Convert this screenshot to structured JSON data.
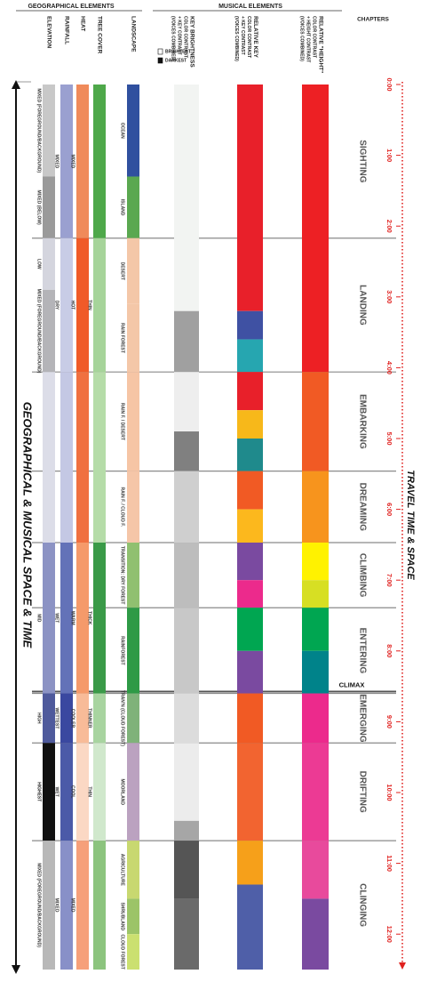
{
  "chart_data": {
    "type": "timeline",
    "title": "GEOGRAPHICAL & MUSICAL SPACE & TIME",
    "time_title": "TRAVEL TIME & SPACE",
    "group_titles": [
      "GEOGRAPHICAL ELEMENTS",
      "MUSICAL ELEMENTS"
    ],
    "chapters_title": "CHAPTERS",
    "ylim": [
      0,
      12.5
    ],
    "yticks": [
      {
        "value": 0,
        "label": "0:00"
      },
      {
        "value": 1,
        "label": "1:00"
      },
      {
        "value": 2,
        "label": "2:00"
      },
      {
        "value": 3,
        "label": "3:00"
      },
      {
        "value": 4,
        "label": "4:00"
      },
      {
        "value": 5,
        "label": "5:00"
      },
      {
        "value": 6,
        "label": "6:00"
      },
      {
        "value": 7,
        "label": "7:00"
      },
      {
        "value": 8,
        "label": "8:00"
      },
      {
        "value": 9,
        "label": "9:00"
      },
      {
        "value": 10,
        "label": "10:00"
      },
      {
        "value": 11,
        "label": "11:00"
      },
      {
        "value": 12,
        "label": "12:00"
      }
    ],
    "chapters": [
      {
        "name": "SIGHTING",
        "start": 0,
        "end": 2.17
      },
      {
        "name": "LANDING",
        "start": 2.17,
        "end": 4.06
      },
      {
        "name": "EMBARKING",
        "start": 4.06,
        "end": 5.46
      },
      {
        "name": "DREAMING",
        "start": 5.46,
        "end": 6.47
      },
      {
        "name": "CLIMBING",
        "start": 6.47,
        "end": 7.39
      },
      {
        "name": "ENTERING",
        "start": 7.39,
        "end": 8.6
      },
      {
        "name": "EMERGING",
        "start": 8.6,
        "end": 9.3
      },
      {
        "name": "DRIFTING",
        "start": 9.3,
        "end": 10.68
      },
      {
        "name": "CLINGING",
        "start": 10.68,
        "end": 12.5
      }
    ],
    "climax": {
      "label": "CLIMAX",
      "time": 8.6
    },
    "brightness_legend": [
      "BRIGHTEST",
      "DARKEST"
    ],
    "columns": [
      {
        "header": [
          "ELEVATION"
        ],
        "group": 0,
        "segments": [
          {
            "start": 0,
            "end": 1.3,
            "color": "#c8c8c8",
            "label": "MIXED (FOREGROUND/BACKGROUND)"
          },
          {
            "start": 1.3,
            "end": 2.17,
            "color": "#9a9a9a",
            "label": "MIXED (BELOW)"
          },
          {
            "start": 2.17,
            "end": 2.9,
            "color": "#d4d5de",
            "label": "LOW"
          },
          {
            "start": 2.9,
            "end": 4.06,
            "color": "#b4b4b8",
            "label": "MIXED (FOREGROUND/BACKGROUND)"
          },
          {
            "start": 4.06,
            "end": 6.47,
            "color": "#dcdde8"
          },
          {
            "start": 6.47,
            "end": 8.6,
            "color": "#8c93c4",
            "label": "MID"
          },
          {
            "start": 8.6,
            "end": 9.3,
            "color": "#4f5a9c",
            "label": "HIGH"
          },
          {
            "start": 9.3,
            "end": 10.68,
            "color": "#111111",
            "label": "HIGHEST"
          },
          {
            "start": 10.68,
            "end": 12.5,
            "color": "#b8b8b8",
            "label": "MIXED (FOREGROUND/BACKGROUND)"
          }
        ]
      },
      {
        "header": [
          "RAINFALL"
        ],
        "group": 0,
        "segments": [
          {
            "start": 0,
            "end": 2.17,
            "color": "#9aa0d0",
            "label": "MIXED"
          },
          {
            "start": 2.17,
            "end": 4.06,
            "color": "#c8cce6",
            "label": "DRY"
          },
          {
            "start": 4.06,
            "end": 6.47,
            "color": "#c4c8e4"
          },
          {
            "start": 6.47,
            "end": 8.6,
            "color": "#6372b8",
            "label": "WET"
          },
          {
            "start": 8.6,
            "end": 9.3,
            "color": "#3a48a0",
            "label": "WETTEST"
          },
          {
            "start": 9.3,
            "end": 10.68,
            "color": "#4b5aa8",
            "label": "WET"
          },
          {
            "start": 10.68,
            "end": 12.5,
            "color": "#8890c8",
            "label": "MIXED"
          }
        ]
      },
      {
        "header": [
          "HEAT"
        ],
        "group": 0,
        "segments": [
          {
            "start": 0,
            "end": 2.17,
            "color": "#f08a5a",
            "label": "MIXED"
          },
          {
            "start": 2.17,
            "end": 4.06,
            "color": "#f05a28",
            "label": "HOT"
          },
          {
            "start": 4.06,
            "end": 6.47,
            "color": "#f07040"
          },
          {
            "start": 6.47,
            "end": 8.6,
            "color": "#f59a6a",
            "label": "WARM"
          },
          {
            "start": 8.6,
            "end": 9.3,
            "color": "#f8bb98",
            "label": "COOLER"
          },
          {
            "start": 9.3,
            "end": 10.68,
            "color": "#fbd8c4",
            "label": "COOL"
          },
          {
            "start": 10.68,
            "end": 12.5,
            "color": "#f6a07a",
            "label": "MIXED"
          }
        ]
      },
      {
        "header": [
          "TREE COVER"
        ],
        "group": 0,
        "segments": [
          {
            "start": 0,
            "end": 2.17,
            "color": "#4ea84a"
          },
          {
            "start": 2.17,
            "end": 4.06,
            "color": "#a6d49a",
            "label": "THIN"
          },
          {
            "start": 4.06,
            "end": 6.47,
            "color": "#b5dca8"
          },
          {
            "start": 6.47,
            "end": 8.6,
            "color": "#3a9a48",
            "label": "THICK"
          },
          {
            "start": 8.6,
            "end": 9.3,
            "color": "#a8d4a0",
            "label": "THINNER"
          },
          {
            "start": 9.3,
            "end": 10.68,
            "color": "#d0e8cc",
            "label": "THIN"
          },
          {
            "start": 10.68,
            "end": 12.5,
            "color": "#8cc47e"
          }
        ]
      },
      {
        "header": [
          "LANDSCAPE"
        ],
        "group": 0,
        "segments": [
          {
            "start": 0,
            "end": 1.3,
            "color": "#30509f",
            "label": "OCEAN"
          },
          {
            "start": 1.3,
            "end": 2.17,
            "color": "#5aa850",
            "label": "ISLAND"
          },
          {
            "start": 2.17,
            "end": 3.1,
            "color": "#f4c7a8",
            "label": "DESERT"
          },
          {
            "start": 3.1,
            "end": 4.06,
            "color": "#f4c7a8",
            "label": "RAIN FOREST"
          },
          {
            "start": 4.06,
            "end": 5.46,
            "color": "#f6c5a5",
            "label": "RAIN F. / DESERT"
          },
          {
            "start": 5.46,
            "end": 6.47,
            "color": "#f5c6a8",
            "label": "RAIN F. / CLOUD F."
          },
          {
            "start": 6.47,
            "end": 7.39,
            "color": "#90c070",
            "label": "TRANSITION: DRY FOREST"
          },
          {
            "start": 7.39,
            "end": 8.6,
            "color": "#2e9a46",
            "label": "RAINFOREST"
          },
          {
            "start": 8.6,
            "end": 9.3,
            "color": "#7fb27a",
            "label": "TRAN'N (CLOUD FOREST)"
          },
          {
            "start": 9.3,
            "end": 10.68,
            "color": "#bba2c0",
            "label": "MOORLAND"
          },
          {
            "start": 10.68,
            "end": 11.5,
            "color": "#c8d870",
            "label": "AGRICULTURE"
          },
          {
            "start": 11.5,
            "end": 12.0,
            "color": "#9cc468",
            "label": "SHRUBLAND"
          },
          {
            "start": 12.0,
            "end": 12.5,
            "color": "#cbe070",
            "label": "CLOUD FOREST"
          }
        ]
      },
      {
        "header": [
          "KEY BRIGHTNESS",
          "COLOR CONTRAST",
          "+ KEY CONTRAST",
          "(VOICES COMBINED)"
        ],
        "group": 1,
        "segments": [
          {
            "start": 0,
            "end": 3.2,
            "color": "#f2f4f2"
          },
          {
            "start": 3.2,
            "end": 4.06,
            "color": "#a0a0a0"
          },
          {
            "start": 4.06,
            "end": 4.9,
            "color": "#eeeeee"
          },
          {
            "start": 4.9,
            "end": 5.46,
            "color": "#808080"
          },
          {
            "start": 5.46,
            "end": 6.47,
            "color": "#cfcfcf"
          },
          {
            "start": 6.47,
            "end": 7.39,
            "color": "#bdbdbd"
          },
          {
            "start": 7.39,
            "end": 8.6,
            "color": "#c8c8c8"
          },
          {
            "start": 8.6,
            "end": 9.3,
            "color": "#dcdcdc"
          },
          {
            "start": 9.3,
            "end": 10.4,
            "color": "#ececec"
          },
          {
            "start": 10.4,
            "end": 10.68,
            "color": "#a6a6a6"
          },
          {
            "start": 10.68,
            "end": 11.5,
            "color": "#555555"
          },
          {
            "start": 11.5,
            "end": 12.5,
            "color": "#6a6a6a"
          }
        ]
      },
      {
        "header": [
          "RELATIVE KEY",
          "COLOR CONTRAST",
          "+ KEY CONTRAST",
          "(VOICES COMBINED)"
        ],
        "group": 1,
        "segments": [
          {
            "start": 0,
            "end": 3.2,
            "color": "#e8202a"
          },
          {
            "start": 3.2,
            "end": 3.6,
            "color": "#3f51a3"
          },
          {
            "start": 3.6,
            "end": 4.06,
            "color": "#26a6b0"
          },
          {
            "start": 4.06,
            "end": 4.6,
            "color": "#e8202a"
          },
          {
            "start": 4.6,
            "end": 5.0,
            "color": "#f7b81a"
          },
          {
            "start": 5.0,
            "end": 5.46,
            "color": "#1f8a8c"
          },
          {
            "start": 5.46,
            "end": 6.0,
            "color": "#f15a24"
          },
          {
            "start": 6.0,
            "end": 6.47,
            "color": "#fcb81d"
          },
          {
            "start": 6.47,
            "end": 7.0,
            "color": "#7a4aa0"
          },
          {
            "start": 7.0,
            "end": 7.39,
            "color": "#ec2a8c"
          },
          {
            "start": 7.39,
            "end": 8.0,
            "color": "#00a651"
          },
          {
            "start": 8.0,
            "end": 8.6,
            "color": "#7a4aa0"
          },
          {
            "start": 8.6,
            "end": 9.3,
            "color": "#f15a24"
          },
          {
            "start": 9.3,
            "end": 10.68,
            "color": "#f26430"
          },
          {
            "start": 10.68,
            "end": 11.3,
            "color": "#f6a01a"
          },
          {
            "start": 11.3,
            "end": 12.5,
            "color": "#4f5fa8"
          }
        ]
      },
      {
        "header": [
          "RELATIVE \"HEIGHT\"",
          "COLOR CONTRAST",
          "+ HEIGHT CONTRAST",
          "(VOICES COMBINED)"
        ],
        "group": 1,
        "segments": [
          {
            "start": 0,
            "end": 4.06,
            "color": "#ed2024"
          },
          {
            "start": 4.06,
            "end": 5.46,
            "color": "#f15a24"
          },
          {
            "start": 5.46,
            "end": 6.47,
            "color": "#f7941d"
          },
          {
            "start": 6.47,
            "end": 7.0,
            "color": "#fff200"
          },
          {
            "start": 7.0,
            "end": 7.39,
            "color": "#d7df23"
          },
          {
            "start": 7.39,
            "end": 8.0,
            "color": "#00a651"
          },
          {
            "start": 8.0,
            "end": 8.6,
            "color": "#00838a"
          },
          {
            "start": 8.6,
            "end": 9.3,
            "color": "#ec2a8c"
          },
          {
            "start": 9.3,
            "end": 10.68,
            "color": "#ec3a94"
          },
          {
            "start": 10.68,
            "end": 11.5,
            "color": "#e84a9c"
          },
          {
            "start": 11.5,
            "end": 12.5,
            "color": "#7a4aa0"
          }
        ]
      }
    ]
  }
}
